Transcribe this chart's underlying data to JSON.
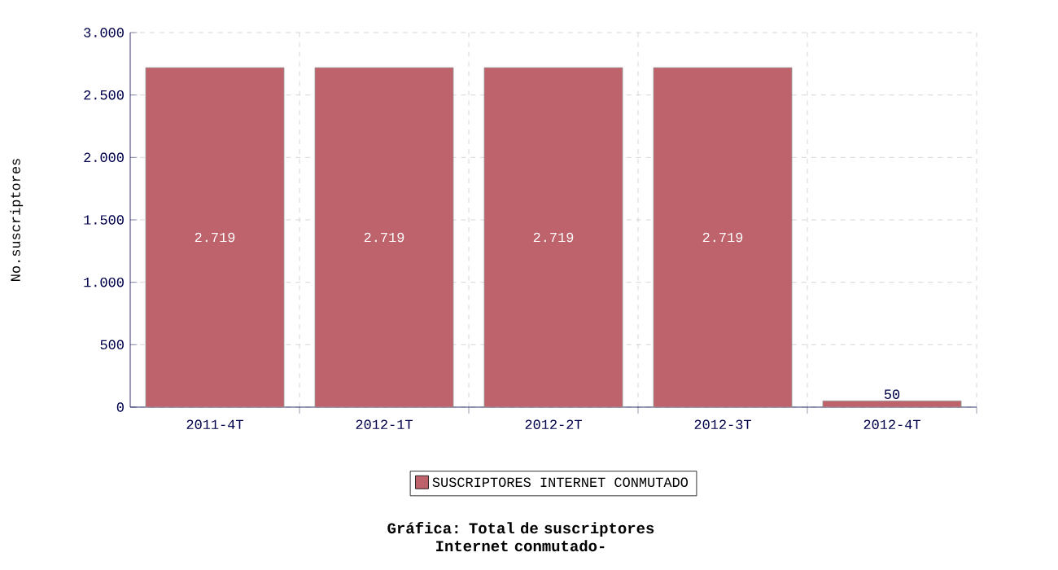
{
  "chart_data": {
    "type": "bar",
    "title": "Gráfica: Total de suscriptores Internet conmutado-",
    "ylabel": "No.suscriptores",
    "categories": [
      "2011-4T",
      "2012-1T",
      "2012-2T",
      "2012-3T",
      "2012-4T"
    ],
    "series": [
      {
        "name": "SUSCRIPTORES INTERNET CONMUTADO",
        "color": "#be626b",
        "values": [
          2719,
          2719,
          2719,
          2719,
          50
        ],
        "value_labels": [
          "2.719",
          "2.719",
          "2.719",
          "2.719",
          "50"
        ]
      }
    ],
    "ylim": [
      0,
      3000
    ],
    "yticks": [
      0,
      500,
      {
        "value": 1000,
        "label": "1.000"
      },
      {
        "value": 1500,
        "label": "1.500"
      },
      {
        "value": 2000,
        "label": "2.000"
      },
      {
        "value": 2500,
        "label": "2.500"
      },
      {
        "value": 3000,
        "label": "3.000"
      }
    ],
    "grid": true,
    "legend": "bottom"
  }
}
